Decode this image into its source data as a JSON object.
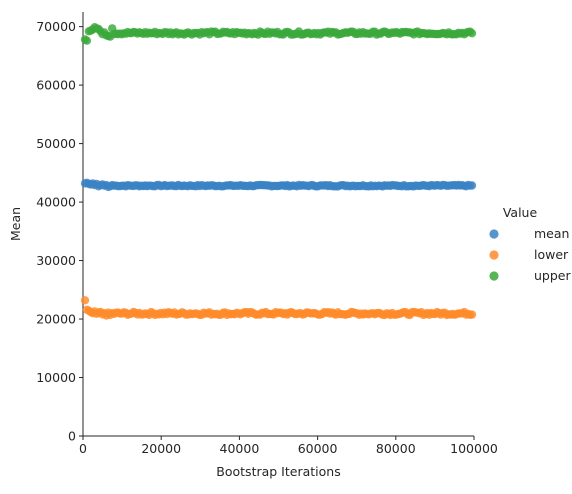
{
  "chart_data": {
    "type": "scatter",
    "title": "",
    "xlabel": "Bootstrap Iterations",
    "ylabel": "Mean",
    "xlim": [
      0,
      100000
    ],
    "ylim": [
      0,
      72500
    ],
    "xticks": [
      0,
      20000,
      40000,
      60000,
      80000,
      100000
    ],
    "yticks": [
      0,
      10000,
      20000,
      30000,
      40000,
      50000,
      60000,
      70000
    ],
    "grid": false,
    "legend": {
      "title": "Value",
      "placement": "right"
    },
    "x_range_of_points": [
      500,
      99500
    ],
    "points_per_series": 200,
    "series": [
      {
        "name": "mean",
        "color": "#3b82c4",
        "typical": 42800,
        "initial": [
          43200,
          43300,
          43100,
          43000,
          43200,
          42900,
          43100,
          42700,
          42900,
          43000,
          42800,
          42900,
          42600,
          42700,
          42900
        ]
      },
      {
        "name": "lower",
        "color": "#ff8a2a",
        "typical": 20950,
        "initial": [
          23200,
          21600,
          21400,
          21200,
          21000,
          21300,
          20900,
          21100,
          21200,
          20800,
          21000,
          20600,
          21100,
          20700,
          21000
        ]
      },
      {
        "name": "upper",
        "color": "#3aa83a",
        "typical": 68900,
        "initial": [
          67800,
          67600,
          69200,
          69300,
          69500,
          69900,
          69700,
          69600,
          69200,
          68700,
          69000,
          68500,
          68400,
          68300,
          69700
        ]
      }
    ]
  }
}
